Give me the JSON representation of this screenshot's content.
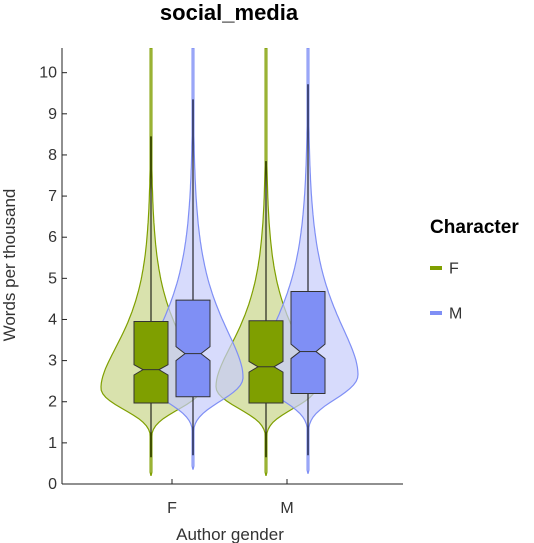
{
  "chart_data": {
    "type": "violin",
    "title": "social_media",
    "xlabel": "Author gender",
    "ylabel": "Words per thousand",
    "categories": [
      "F",
      "M"
    ],
    "ylim": [
      0,
      10.6
    ],
    "yticks": [
      0,
      1,
      2,
      3,
      4,
      5,
      6,
      7,
      8,
      9,
      10
    ],
    "grid": false,
    "legend": {
      "title": "Character",
      "placement": "right",
      "entries": [
        "F",
        "M"
      ]
    },
    "colors": {
      "F": "#7f9f00",
      "F_violin_fill": "#c9d68a",
      "M": "#7f8ff5",
      "M_violin_fill": "#c6ccfb"
    },
    "series": [
      {
        "name": "F",
        "boxes": [
          {
            "category": "F",
            "q1": 1.97,
            "median": 2.78,
            "q3": 3.95,
            "whisker_low": 0.65,
            "whisker_high": 8.45,
            "notch_low": 2.65,
            "notch_high": 2.9,
            "violin_min": 0.2,
            "violin_max": 10.6
          },
          {
            "category": "M",
            "q1": 1.97,
            "median": 2.85,
            "q3": 3.97,
            "whisker_low": 0.65,
            "whisker_high": 7.85,
            "notch_low": 2.72,
            "notch_high": 2.98,
            "violin_min": 0.2,
            "violin_max": 10.6
          }
        ]
      },
      {
        "name": "M",
        "boxes": [
          {
            "category": "F",
            "q1": 2.12,
            "median": 3.17,
            "q3": 4.47,
            "whisker_low": 0.7,
            "whisker_high": 9.35,
            "notch_low": 3.0,
            "notch_high": 3.34,
            "violin_min": 0.35,
            "violin_max": 10.6
          },
          {
            "category": "M",
            "q1": 2.2,
            "median": 3.22,
            "q3": 4.68,
            "whisker_low": 0.7,
            "whisker_high": 9.72,
            "notch_low": 3.05,
            "notch_high": 3.4,
            "violin_min": 0.25,
            "violin_max": 10.6
          }
        ]
      }
    ]
  }
}
